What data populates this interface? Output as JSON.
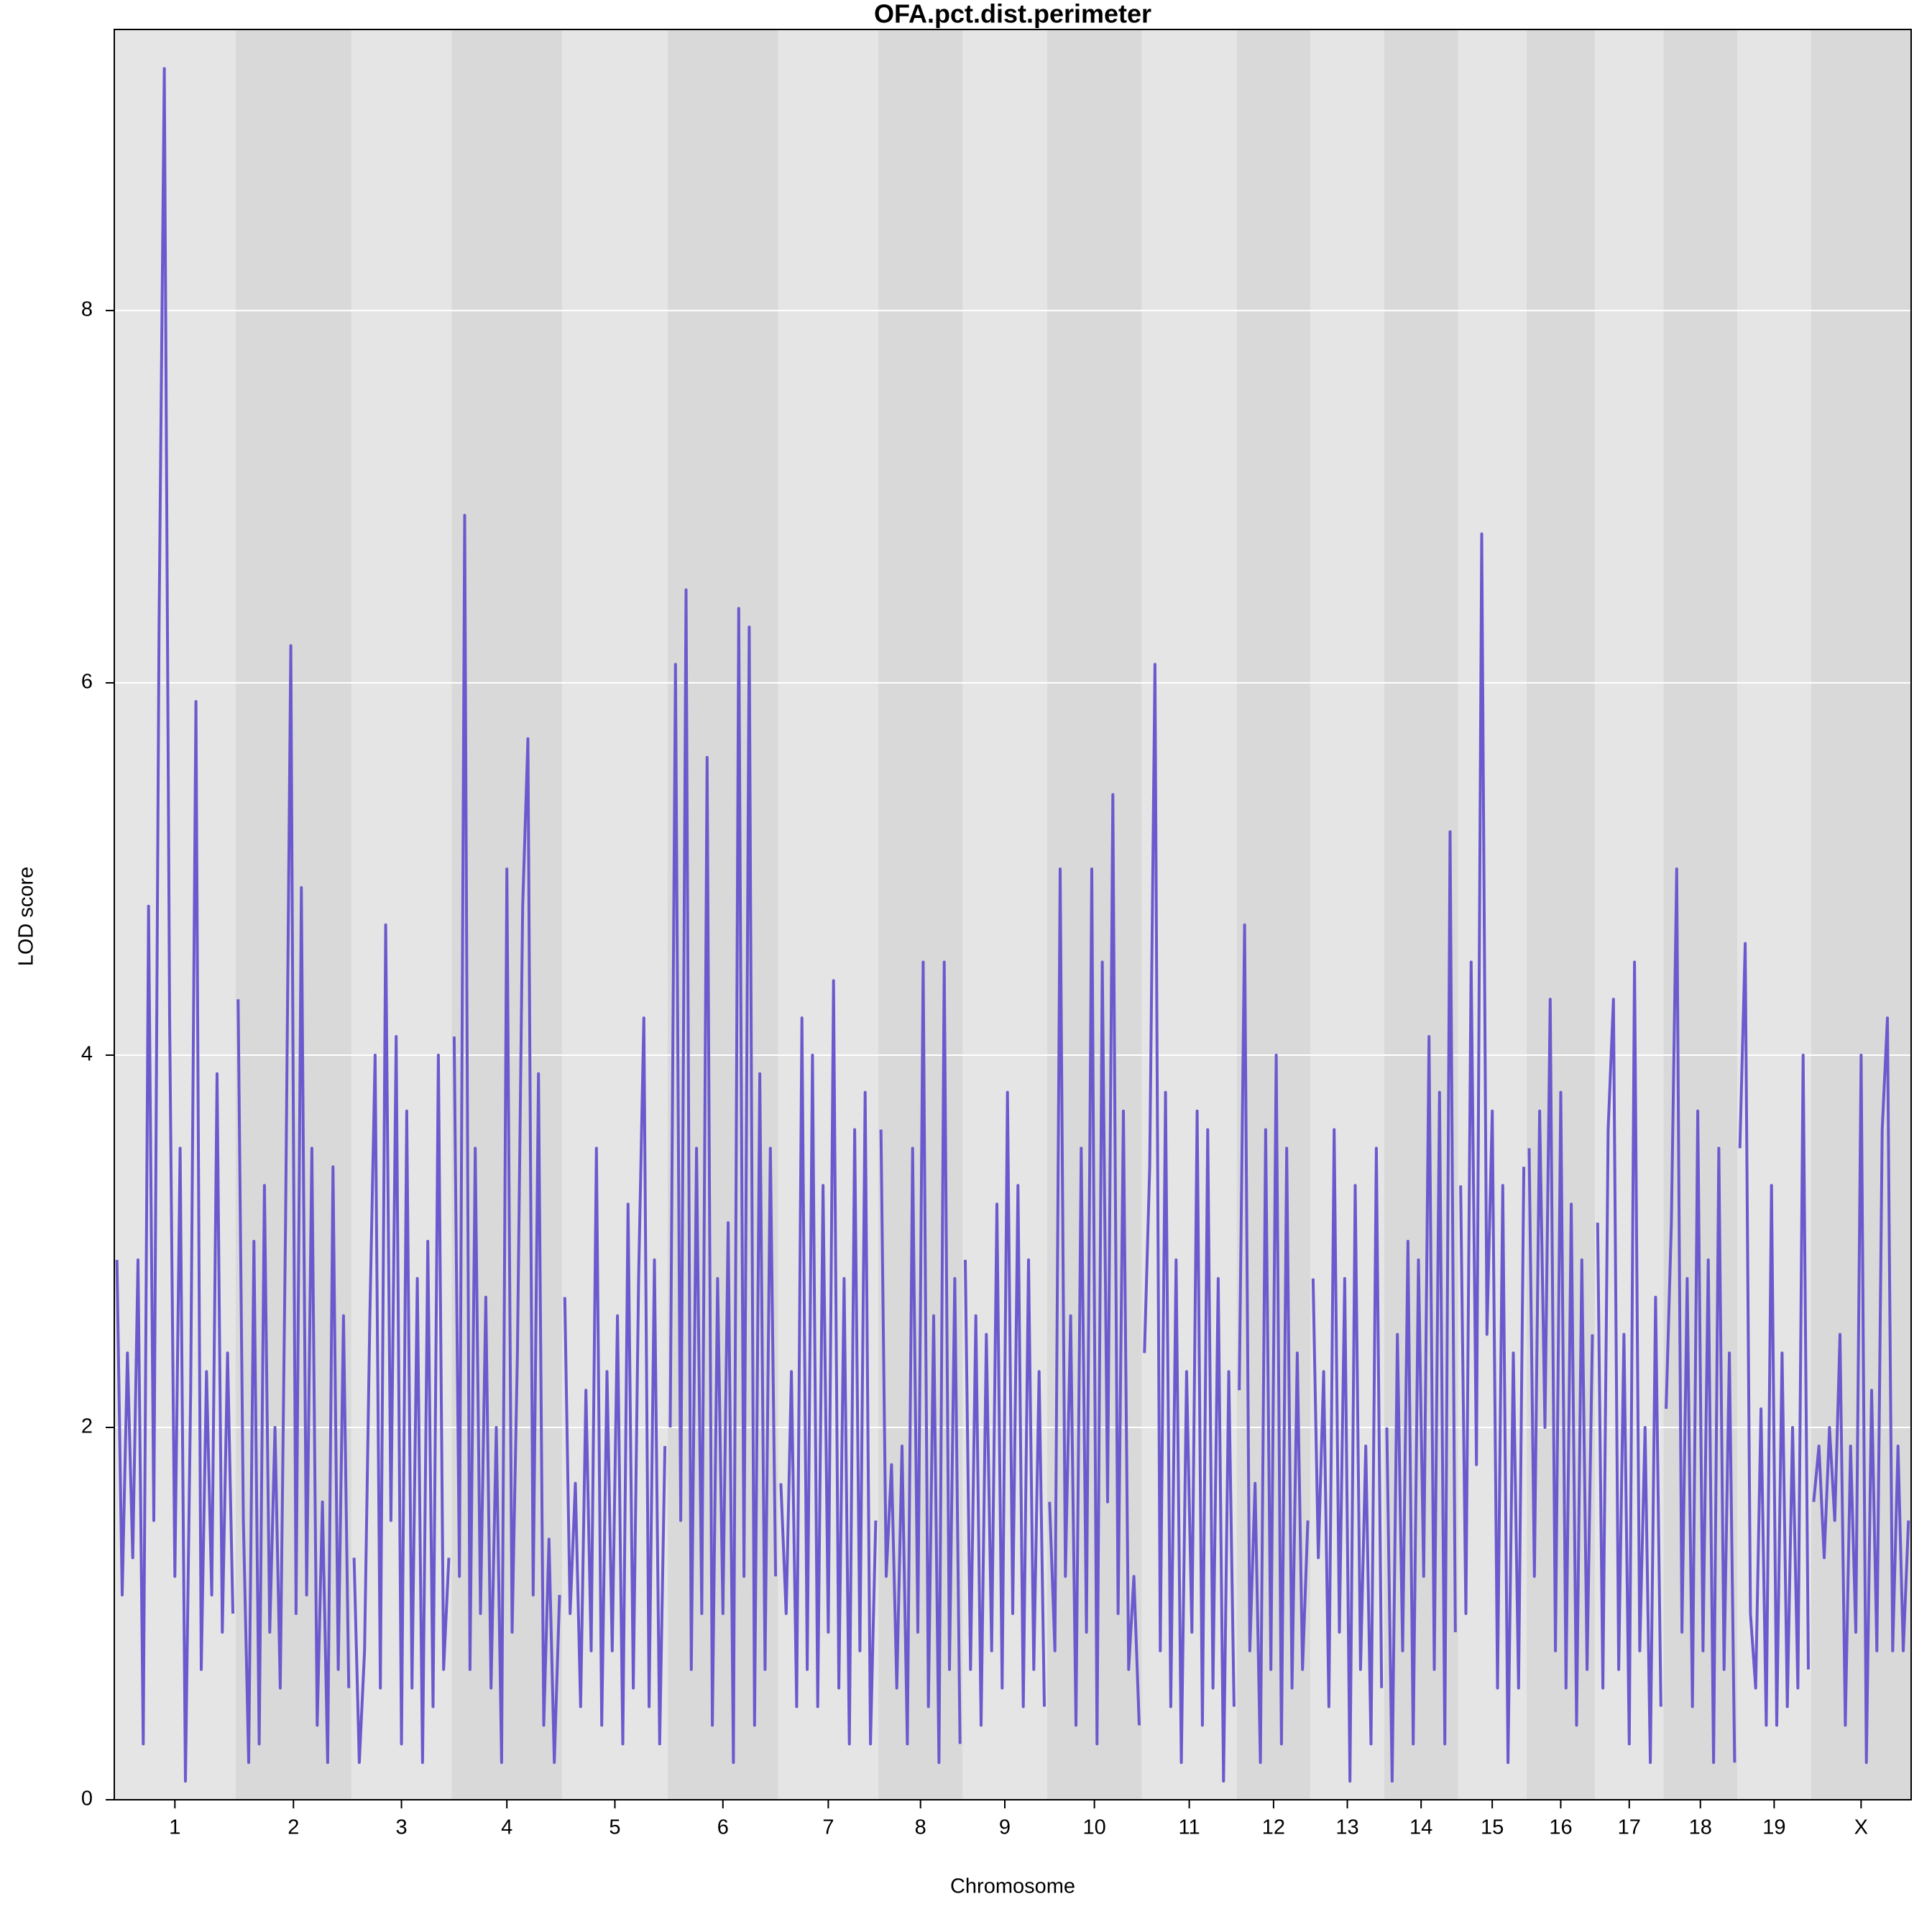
{
  "chart_data": {
    "type": "line",
    "title": "OFA.pct.dist.perimeter",
    "xlabel": "Chromosome",
    "ylabel": "LOD score",
    "categories": [
      "1",
      "2",
      "3",
      "4",
      "5",
      "6",
      "7",
      "8",
      "9",
      "10",
      "11",
      "12",
      "13",
      "14",
      "15",
      "16",
      "17",
      "18",
      "19",
      "X"
    ],
    "values": [
      [
        2.9,
        1.1,
        2.4,
        1.3,
        2.9,
        0.3,
        4.8,
        1.5,
        6.3,
        9.3,
        4.2,
        1.2,
        3.5,
        0.1,
        2.2,
        5.9,
        0.7,
        2.3,
        1.1,
        3.9,
        0.9,
        2.4,
        1.0
      ],
      [
        4.3,
        1.5,
        0.2,
        3.0,
        0.3,
        3.3,
        0.9,
        2.0,
        0.6,
        3.1,
        6.2,
        1.0,
        4.9,
        1.1,
        3.5,
        0.4,
        1.6,
        0.2,
        3.4,
        0.7,
        2.6,
        0.6
      ],
      [
        1.3,
        0.2,
        0.8,
        2.6,
        4.0,
        0.6,
        4.7,
        1.5,
        4.1,
        0.3,
        3.7,
        0.6,
        2.8,
        0.2,
        3.0,
        0.5,
        4.0,
        0.7,
        1.3
      ],
      [
        4.1,
        1.2,
        6.9,
        0.7,
        3.5,
        1.0,
        2.7,
        0.6,
        2.0,
        0.2,
        5.0,
        0.9,
        2.4,
        4.8,
        5.7,
        1.1,
        3.9,
        0.4,
        1.4,
        0.2,
        1.1
      ],
      [
        2.7,
        1.0,
        1.7,
        0.5,
        2.2,
        0.8,
        3.5,
        0.4,
        2.3,
        0.8,
        2.6,
        0.3,
        3.2,
        0.6,
        2.8,
        4.2,
        0.5,
        2.9,
        0.3,
        1.9
      ],
      [
        2.0,
        6.1,
        1.5,
        6.5,
        0.7,
        3.5,
        1.0,
        5.6,
        0.4,
        2.8,
        1.0,
        3.1,
        0.2,
        6.4,
        1.2,
        6.3,
        0.4,
        3.9,
        0.7,
        3.5,
        1.2
      ],
      [
        1.7,
        1.0,
        2.3,
        0.5,
        4.2,
        0.7,
        4.0,
        0.5,
        3.3,
        0.9,
        4.4,
        0.6,
        2.8,
        0.3,
        3.6,
        0.8,
        3.8,
        0.3,
        1.5
      ],
      [
        3.6,
        1.2,
        1.8,
        0.6,
        1.9,
        0.3,
        3.5,
        0.9,
        4.5,
        0.5,
        2.6,
        0.2,
        4.5,
        0.7,
        2.8,
        0.3
      ],
      [
        2.9,
        0.7,
        2.6,
        0.4,
        2.5,
        0.8,
        3.2,
        0.6,
        3.8,
        1.0,
        3.3,
        0.5,
        2.9,
        0.7,
        2.3,
        0.5
      ],
      [
        1.6,
        0.8,
        5.0,
        1.2,
        2.6,
        0.4,
        3.5,
        0.9,
        5.0,
        0.3,
        4.5,
        1.6,
        5.4,
        1.0,
        3.7,
        0.7,
        1.2,
        0.4
      ],
      [
        2.4,
        3.4,
        6.1,
        0.8,
        3.8,
        0.5,
        2.9,
        0.2,
        2.3,
        0.9,
        3.7,
        0.4,
        3.6,
        0.6,
        2.8,
        0.1,
        2.3,
        0.5
      ],
      [
        2.2,
        4.7,
        0.8,
        1.7,
        0.2,
        3.6,
        0.7,
        4.0,
        0.3,
        3.5,
        0.6,
        2.4,
        0.7,
        1.5
      ],
      [
        2.8,
        1.3,
        2.3,
        0.5,
        3.6,
        0.9,
        2.8,
        0.1,
        3.3,
        0.7,
        1.9,
        0.3,
        3.5,
        0.6
      ],
      [
        2.0,
        0.1,
        2.5,
        0.8,
        3.0,
        0.3,
        2.9,
        1.2,
        4.1,
        0.7,
        3.8,
        0.3,
        5.2,
        0.9
      ],
      [
        3.3,
        1.0,
        4.5,
        1.8,
        6.8,
        2.5,
        3.7,
        0.6,
        3.3,
        0.2,
        2.4,
        0.6,
        3.4
      ],
      [
        3.5,
        1.2,
        3.7,
        2.0,
        4.3,
        0.8,
        3.8,
        0.6,
        3.2,
        0.4,
        2.9,
        0.7,
        2.5
      ],
      [
        3.1,
        0.6,
        3.6,
        4.3,
        0.7,
        2.5,
        0.3,
        4.5,
        0.8,
        2.0,
        0.2,
        2.7,
        0.5
      ],
      [
        2.1,
        3.1,
        5.0,
        0.9,
        2.8,
        0.5,
        3.7,
        0.8,
        2.9,
        0.2,
        3.5,
        0.7,
        2.4,
        0.2
      ],
      [
        3.5,
        4.6,
        1.0,
        0.6,
        2.1,
        0.4,
        3.3,
        0.4,
        2.4,
        0.5,
        2.0,
        0.6,
        4.0,
        0.7
      ],
      [
        1.6,
        1.9,
        1.3,
        2.0,
        1.5,
        2.5,
        0.4,
        1.9,
        0.9,
        4.0,
        0.2,
        2.2,
        0.8,
        3.6,
        4.2,
        0.8,
        1.9,
        0.8,
        1.5
      ]
    ],
    "color": "#6a5acd",
    "band_colors": [
      "#e5e5e5",
      "#d9d9d9"
    ],
    "ylim": [
      0,
      9.51
    ],
    "yticks": [
      0,
      2,
      4,
      6,
      8
    ],
    "grid": true
  }
}
